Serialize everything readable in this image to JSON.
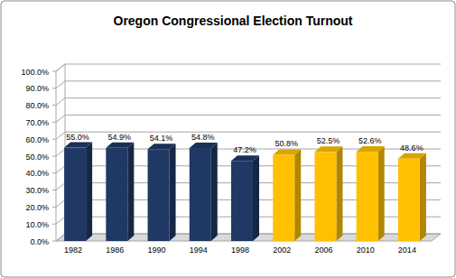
{
  "chart_data": {
    "type": "bar",
    "title": "Oregon Congressional  Election Turnout",
    "categories": [
      "1982",
      "1986",
      "1990",
      "1994",
      "1998",
      "2002",
      "2006",
      "2010",
      "2014"
    ],
    "values": [
      55.0,
      54.9,
      54.1,
      54.8,
      47.2,
      50.8,
      52.5,
      52.6,
      48.6
    ],
    "value_labels": [
      "55.0%",
      "54.9%",
      "54.1%",
      "54.8%",
      "47.2%",
      "50.8%",
      "52.5%",
      "52.6%",
      "48.6%"
    ],
    "colors": [
      "#1f3864",
      "#1f3864",
      "#1f3864",
      "#1f3864",
      "#1f3864",
      "#ffc000",
      "#ffc000",
      "#ffc000",
      "#ffc000"
    ],
    "ylim": [
      0,
      100
    ],
    "yticks": [
      {
        "value": 0,
        "label": "0.0%"
      },
      {
        "value": 10,
        "label": "10.0%"
      },
      {
        "value": 20,
        "label": "20.0%"
      },
      {
        "value": 30,
        "label": "30.0%"
      },
      {
        "value": 40,
        "label": "40.0%"
      },
      {
        "value": 50,
        "label": "50.0%"
      },
      {
        "value": 60,
        "label": "60.0%"
      },
      {
        "value": 70,
        "label": "70.0%"
      },
      {
        "value": 80,
        "label": "80.0%"
      },
      {
        "value": 90,
        "label": "90.0%"
      },
      {
        "value": 100,
        "label": "100.0%"
      }
    ],
    "grid": true,
    "data_labels": true
  }
}
